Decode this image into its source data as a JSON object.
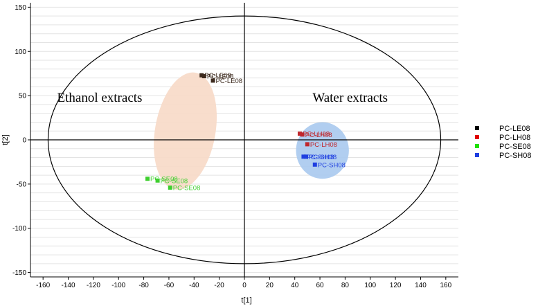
{
  "chart_data": {
    "type": "scatter",
    "xlabel": "t[1]",
    "ylabel": "t[2]",
    "xlim": [
      -170,
      170
    ],
    "ylim": [
      -155,
      155
    ],
    "x_ticks": [
      -160,
      -140,
      -120,
      -100,
      -80,
      -60,
      -40,
      -20,
      0,
      20,
      40,
      60,
      80,
      100,
      120,
      140,
      160
    ],
    "y_ticks": [
      -150,
      -100,
      -50,
      0,
      50,
      100,
      150
    ],
    "grid": "horizontal",
    "hotelling_ellipse": {
      "cx": 0,
      "cy": 0,
      "rx": 156,
      "ry": 140
    },
    "group_ellipses": [
      {
        "name": "Ethanol extracts",
        "color": "#f7d9c6",
        "cx": -47,
        "cy": 10,
        "rx": 24,
        "ry": 67,
        "angle": 10
      },
      {
        "name": "Water extracts",
        "color": "#a9c9ee",
        "cx": 62,
        "cy": -12,
        "rx": 21,
        "ry": 32,
        "angle": 0
      }
    ],
    "annotations": [
      {
        "text": "Ethanol extracts",
        "x": -115,
        "y": 43
      },
      {
        "text": "Water extracts",
        "x": 84,
        "y": 43
      }
    ],
    "series": [
      {
        "name": "PC-LE08",
        "color": "#3d2b1f",
        "points": [
          {
            "x": -34,
            "y": 73,
            "label": "PC-LE08"
          },
          {
            "x": -32,
            "y": 72,
            "label": "PC-LE08"
          },
          {
            "x": -25,
            "y": 67,
            "label": "PC-LE08"
          }
        ]
      },
      {
        "name": "PC-LH08",
        "color": "#c0272d",
        "points": [
          {
            "x": 44,
            "y": 7,
            "label": "PC-LH08"
          },
          {
            "x": 46,
            "y": 6,
            "label": "PC-LH08"
          },
          {
            "x": 50,
            "y": -5,
            "label": "PC-LH08"
          }
        ]
      },
      {
        "name": "PC-SE08",
        "color": "#3ecf2e",
        "points": [
          {
            "x": -77,
            "y": -44,
            "label": "PC-SE08"
          },
          {
            "x": -69,
            "y": -46,
            "label": "PC-SE08"
          },
          {
            "x": -59,
            "y": -54,
            "label": "PC-SE08"
          }
        ]
      },
      {
        "name": "PC-SH08",
        "color": "#1f3fe0",
        "points": [
          {
            "x": 47,
            "y": -19,
            "label": "PC-SH08"
          },
          {
            "x": 49,
            "y": -19,
            "label": "PC-SH08"
          },
          {
            "x": 56,
            "y": -28,
            "label": "PC-SH08"
          }
        ]
      }
    ],
    "legend": {
      "position": "right",
      "items": [
        {
          "name": "PC-LE08",
          "color": "#000000"
        },
        {
          "name": "PC-LH08",
          "color": "#e00000"
        },
        {
          "name": "PC-SE08",
          "color": "#22e000"
        },
        {
          "name": "PC-SH08",
          "color": "#1f3fe0"
        }
      ]
    }
  }
}
